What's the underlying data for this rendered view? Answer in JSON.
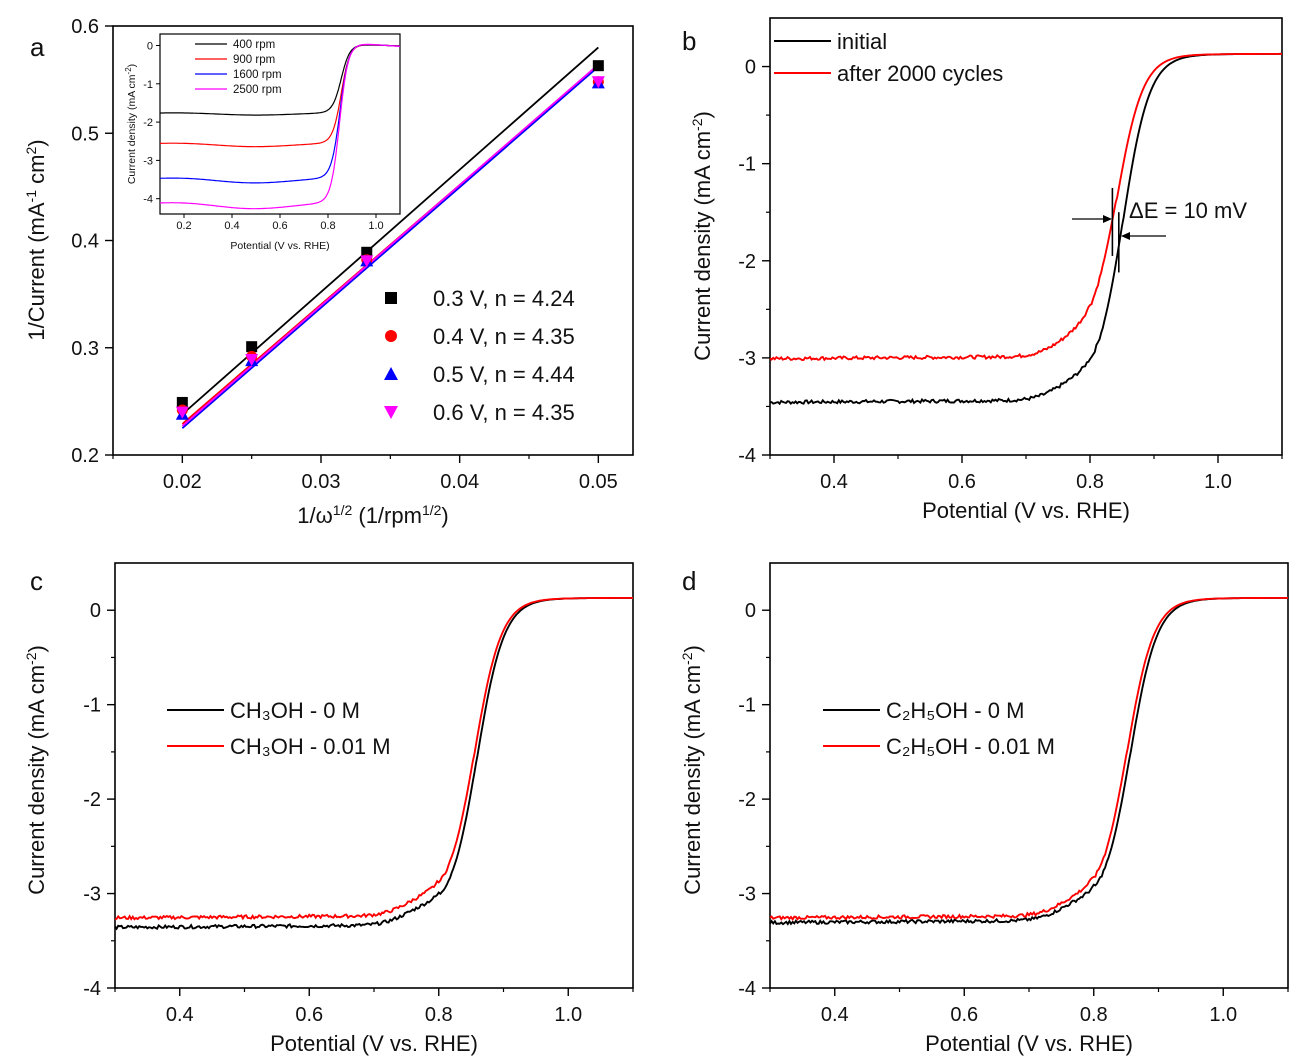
{
  "chart_data": [
    {
      "id": "a",
      "panel_label": "a",
      "type": "scatter",
      "xlabel": "1/ω",
      "xlabel_sup": "1/2",
      "xlabel_tail": " (1/rpm",
      "xlabel_tail_sup": "1/2",
      "xlabel_end": ")",
      "ylabel": "1/Current (mA",
      "ylabel_sup1": "-1",
      "ylabel_mid": " cm",
      "ylabel_sup2": "2",
      "ylabel_end": ")",
      "xlim": [
        0.015,
        0.0525
      ],
      "ylim": [
        0.2,
        0.6
      ],
      "xticks": [
        0.02,
        0.03,
        0.04,
        0.05
      ],
      "xtick_labels": [
        "0.02",
        "0.03",
        "0.04",
        "0.05"
      ],
      "yticks": [
        0.2,
        0.3,
        0.4,
        0.5,
        0.6
      ],
      "ytick_labels": [
        "0.2",
        "0.3",
        "0.4",
        "0.5",
        "0.6"
      ],
      "series": [
        {
          "name": "0.3 V, n = 4.24",
          "color": "#000000",
          "marker": "square",
          "x": [
            0.02,
            0.025,
            0.0333,
            0.05
          ],
          "y": [
            0.249,
            0.301,
            0.389,
            0.563
          ],
          "fit": [
            [
              0.02,
              0.238
            ],
            [
              0.05,
              0.58
            ]
          ]
        },
        {
          "name": "0.4 V, n = 4.35",
          "color": "#ff0000",
          "marker": "circle",
          "x": [
            0.02,
            0.025,
            0.0333,
            0.05
          ],
          "y": [
            0.242,
            0.292,
            0.382,
            0.548
          ],
          "fit": [
            [
              0.02,
              0.229
            ],
            [
              0.05,
              0.563
            ]
          ]
        },
        {
          "name": "0.5 V, n = 4.44",
          "color": "#0000ff",
          "marker": "triangle-up",
          "x": [
            0.02,
            0.025,
            0.0333,
            0.05
          ],
          "y": [
            0.238,
            0.288,
            0.381,
            0.547
          ],
          "fit": [
            [
              0.02,
              0.225
            ],
            [
              0.05,
              0.562
            ]
          ]
        },
        {
          "name": "0.6 V, n = 4.35",
          "color": "#ff00ff",
          "marker": "triangle-down",
          "x": [
            0.02,
            0.025,
            0.0333,
            0.05
          ],
          "y": [
            0.24,
            0.289,
            0.381,
            0.548
          ],
          "fit": [
            [
              0.02,
              0.227
            ],
            [
              0.05,
              0.564
            ]
          ]
        }
      ],
      "legend_position": "bottom-right",
      "inset": {
        "type": "line",
        "xlabel": "Potential (V vs. RHE)",
        "ylabel": "Current density (mA cm",
        "ylabel_sup": "-2",
        "ylabel_end": ")",
        "xlim": [
          0.1,
          1.1
        ],
        "ylim": [
          -4.4,
          0.3
        ],
        "xticks": [
          0.2,
          0.4,
          0.6,
          0.8,
          1.0
        ],
        "xtick_labels": [
          "0.2",
          "0.4",
          "0.6",
          "0.8",
          "1.0"
        ],
        "yticks": [
          0,
          -1,
          -2,
          -3,
          -4
        ],
        "ytick_labels": [
          "0",
          "-1",
          "-2",
          "-3",
          "-4"
        ],
        "series": [
          {
            "name": "400 rpm",
            "color": "#000000",
            "limit": -1.78,
            "onset": 0.855
          },
          {
            "name": "900 rpm",
            "color": "#ff0000",
            "limit": -2.58,
            "onset": 0.855
          },
          {
            "name": "1600 rpm",
            "color": "#0000ff",
            "limit": -3.5,
            "onset": 0.85
          },
          {
            "name": "2500 rpm",
            "color": "#ff00ff",
            "limit": -4.15,
            "onset": 0.848
          }
        ]
      }
    },
    {
      "id": "b",
      "panel_label": "b",
      "type": "line",
      "xlabel": "Potential (V vs. RHE)",
      "ylabel": "Current density (mA cm",
      "ylabel_sup": "-2",
      "ylabel_end": ")",
      "xlim": [
        0.3,
        1.1
      ],
      "ylim": [
        -4,
        0.5
      ],
      "xticks": [
        0.4,
        0.6,
        0.8,
        1.0
      ],
      "xtick_labels": [
        "0.4",
        "0.6",
        "0.8",
        "1.0"
      ],
      "yticks": [
        0,
        -1,
        -2,
        -3,
        -4
      ],
      "ytick_labels": [
        "0",
        "-1",
        "-2",
        "-3",
        "-4"
      ],
      "series": [
        {
          "name": "initial",
          "color": "#000000",
          "limit": -3.45,
          "onset": 0.85
        },
        {
          "name": "after 2000 cycles",
          "color": "#ff0000",
          "limit": -3.0,
          "onset": 0.84
        }
      ],
      "annotation": "ΔE = 10 mV",
      "legend_position": "top-left"
    },
    {
      "id": "c",
      "panel_label": "c",
      "type": "line",
      "xlabel": "Potential (V vs. RHE)",
      "ylabel": "Current density (mA cm",
      "ylabel_sup": "-2",
      "ylabel_end": ")",
      "xlim": [
        0.3,
        1.1
      ],
      "ylim": [
        -4,
        0.5
      ],
      "xticks": [
        0.4,
        0.6,
        0.8,
        1.0
      ],
      "xtick_labels": [
        "0.4",
        "0.6",
        "0.8",
        "1.0"
      ],
      "yticks": [
        0,
        -1,
        -2,
        -3,
        -4
      ],
      "ytick_labels": [
        "0",
        "-1",
        "-2",
        "-3",
        "-4"
      ],
      "series": [
        {
          "name": "CH₃OH - 0 M",
          "color": "#000000",
          "limit": -3.35,
          "onset": 0.858
        },
        {
          "name": "CH₃OH - 0.01 M",
          "color": "#ff0000",
          "limit": -3.25,
          "onset": 0.854
        }
      ],
      "legend_position": "middle-left"
    },
    {
      "id": "d",
      "panel_label": "d",
      "type": "line",
      "xlabel": "Potential (V vs. RHE)",
      "ylabel": "Current density (mA cm",
      "ylabel_sup": "-2",
      "ylabel_end": ")",
      "xlim": [
        0.3,
        1.1
      ],
      "ylim": [
        -4,
        0.5
      ],
      "xticks": [
        0.4,
        0.6,
        0.8,
        1.0
      ],
      "xtick_labels": [
        "0.4",
        "0.6",
        "0.8",
        "1.0"
      ],
      "yticks": [
        0,
        -1,
        -2,
        -3,
        -4
      ],
      "ytick_labels": [
        "0",
        "-1",
        "-2",
        "-3",
        "-4"
      ],
      "series": [
        {
          "name": "C₂H₅OH - 0 M",
          "color": "#000000",
          "limit": -3.3,
          "onset": 0.855
        },
        {
          "name": "C₂H₅OH - 0.01 M",
          "color": "#ff0000",
          "limit": -3.25,
          "onset": 0.85
        }
      ],
      "legend_position": "middle-left"
    }
  ]
}
